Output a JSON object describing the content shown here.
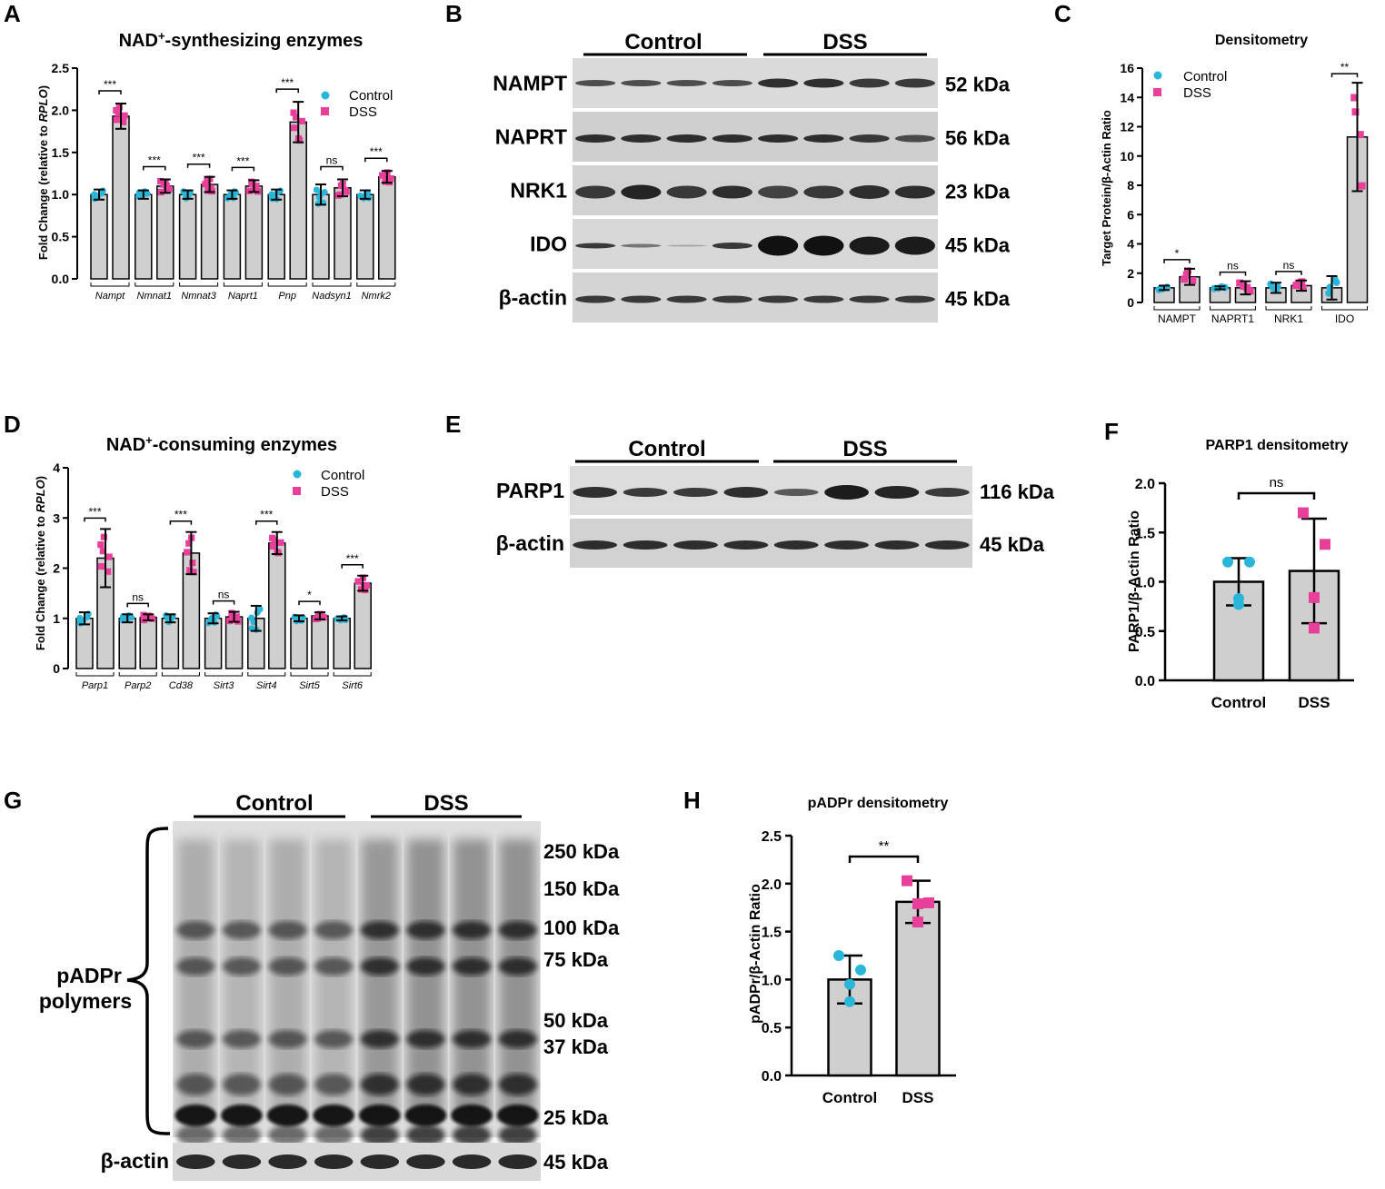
{
  "colors": {
    "control": "#29b6d8",
    "dss": "#e8409a",
    "bar": "#cfcfcf",
    "axis": "#000000"
  },
  "legend": {
    "control": "Control",
    "dss": "DSS"
  },
  "panels": {
    "A": {
      "label": "A",
      "title_pre": "NAD",
      "title_sup": "+",
      "title_post": "-synthesizing enzymes",
      "ylabel_pre": "Fold Change (relative to ",
      "ylabel_it": "RPLO",
      "ylabel_post": ")"
    },
    "B": {
      "label": "B"
    },
    "C": {
      "label": "C",
      "title": "Densitometry",
      "ylabel": "Target Protein/β-Actin Ratio"
    },
    "D": {
      "label": "D",
      "title_pre": "NAD",
      "title_sup": "+",
      "title_post": "-consuming enzymes",
      "ylabel_pre": "Fold Change (relative to ",
      "ylabel_it": "RPLO",
      "ylabel_post": ")"
    },
    "E": {
      "label": "E"
    },
    "F": {
      "label": "F",
      "title": "PARP1 densitometry",
      "ylabel": "PARP1/β-Actin Ratio"
    },
    "G": {
      "label": "G",
      "bracket_label_1": "pADPr",
      "bracket_label_2": "polymers"
    },
    "H": {
      "label": "H",
      "title": "pADPr densitometry",
      "ylabel": "pADPr/β-Actin Ratio"
    }
  },
  "blots": {
    "B": {
      "groups": [
        "Control",
        "DSS"
      ],
      "rows": [
        {
          "name": "NAMPT",
          "kda": "52 kDa"
        },
        {
          "name": "NAPRT",
          "kda": "56 kDa"
        },
        {
          "name": "NRK1",
          "kda": "23 kDa"
        },
        {
          "name": "IDO",
          "kda": "45 kDa"
        },
        {
          "name": "β-actin",
          "kda": "45 kDa"
        }
      ]
    },
    "E": {
      "groups": [
        "Control",
        "DSS"
      ],
      "rows": [
        {
          "name": "PARP1",
          "kda": "116 kDa"
        },
        {
          "name": "β-actin",
          "kda": "45 kDa"
        }
      ]
    },
    "G": {
      "groups": [
        "Control",
        "DSS"
      ],
      "markers": [
        "250 kDa",
        "150 kDa",
        "100 kDa",
        "75 kDa",
        "50 kDa",
        "37 kDa",
        "25 kDa"
      ],
      "actin": {
        "name": "β-actin",
        "kda": "45 kDa"
      }
    }
  },
  "chart_data": [
    {
      "panel": "A",
      "type": "bar",
      "ylim": [
        0,
        2.5
      ],
      "yticks": [
        "0.0",
        "0.5",
        "1.0",
        "1.5",
        "2.0",
        "2.5"
      ],
      "categories": [
        "Nampt",
        "Nmnat1",
        "Nmnat3",
        "Naprt1",
        "Pnp",
        "Nadsyn1",
        "Nmrk2"
      ],
      "series": [
        {
          "name": "Control",
          "values": [
            1.0,
            1.0,
            1.0,
            1.0,
            1.0,
            1.0,
            1.0
          ],
          "err": [
            0.06,
            0.05,
            0.05,
            0.05,
            0.06,
            0.12,
            0.05
          ]
        },
        {
          "name": "DSS",
          "values": [
            1.93,
            1.1,
            1.12,
            1.1,
            1.86,
            1.08,
            1.21
          ],
          "err": [
            0.15,
            0.08,
            0.09,
            0.07,
            0.24,
            0.1,
            0.07
          ]
        }
      ],
      "significance": [
        "***",
        "***",
        "***",
        "***",
        "***",
        "ns",
        "***"
      ]
    },
    {
      "panel": "C",
      "type": "bar",
      "ylim": [
        0,
        16
      ],
      "yticks": [
        "0",
        "2",
        "4",
        "6",
        "8",
        "10",
        "12",
        "14",
        "16"
      ],
      "categories": [
        "NAMPT",
        "NAPRT1",
        "NRK1",
        "IDO"
      ],
      "series": [
        {
          "name": "Control",
          "values": [
            1.0,
            1.0,
            1.0,
            1.0
          ],
          "err": [
            0.15,
            0.1,
            0.35,
            0.8
          ]
        },
        {
          "name": "DSS",
          "values": [
            1.75,
            1.0,
            1.15,
            11.3
          ],
          "err": [
            0.55,
            0.45,
            0.35,
            3.7
          ]
        }
      ],
      "significance": [
        "*",
        "ns",
        "ns",
        "**"
      ]
    },
    {
      "panel": "D",
      "type": "bar",
      "ylim": [
        0,
        4
      ],
      "yticks": [
        "0",
        "1",
        "2",
        "3",
        "4"
      ],
      "categories": [
        "Parp1",
        "Parp2",
        "Cd38",
        "Sirt3",
        "Sirt4",
        "Sirt5",
        "Sirt6"
      ],
      "series": [
        {
          "name": "Control",
          "values": [
            1.0,
            1.0,
            1.0,
            1.0,
            1.0,
            1.0,
            1.0
          ],
          "err": [
            0.12,
            0.08,
            0.08,
            0.1,
            0.25,
            0.06,
            0.04
          ]
        },
        {
          "name": "DSS",
          "values": [
            2.2,
            1.02,
            2.3,
            1.03,
            2.5,
            1.05,
            1.7
          ],
          "err": [
            0.58,
            0.06,
            0.42,
            0.1,
            0.22,
            0.07,
            0.15
          ]
        }
      ],
      "significance": [
        "***",
        "ns",
        "***",
        "ns",
        "***",
        "*",
        "***"
      ]
    },
    {
      "panel": "F",
      "type": "bar",
      "ylim": [
        0,
        2.0
      ],
      "yticks": [
        "0.0",
        "0.5",
        "1.0",
        "1.5",
        "2.0"
      ],
      "categories": [
        "Control",
        "DSS"
      ],
      "values": [
        1.0,
        1.11
      ],
      "err": [
        0.24,
        0.53
      ],
      "points": [
        [
          1.2,
          1.2,
          0.83,
          0.77
        ],
        [
          1.7,
          1.38,
          0.84,
          0.53
        ]
      ],
      "significance": "ns"
    },
    {
      "panel": "H",
      "type": "bar",
      "ylim": [
        0,
        2.5
      ],
      "yticks": [
        "0.0",
        "0.5",
        "1.0",
        "1.5",
        "2.0",
        "2.5"
      ],
      "categories": [
        "Control",
        "DSS"
      ],
      "values": [
        1.0,
        1.81
      ],
      "err": [
        0.25,
        0.22
      ],
      "points": [
        [
          1.25,
          1.1,
          0.95,
          0.77
        ],
        [
          2.03,
          1.8,
          1.79,
          1.6
        ]
      ],
      "significance": "**"
    }
  ]
}
